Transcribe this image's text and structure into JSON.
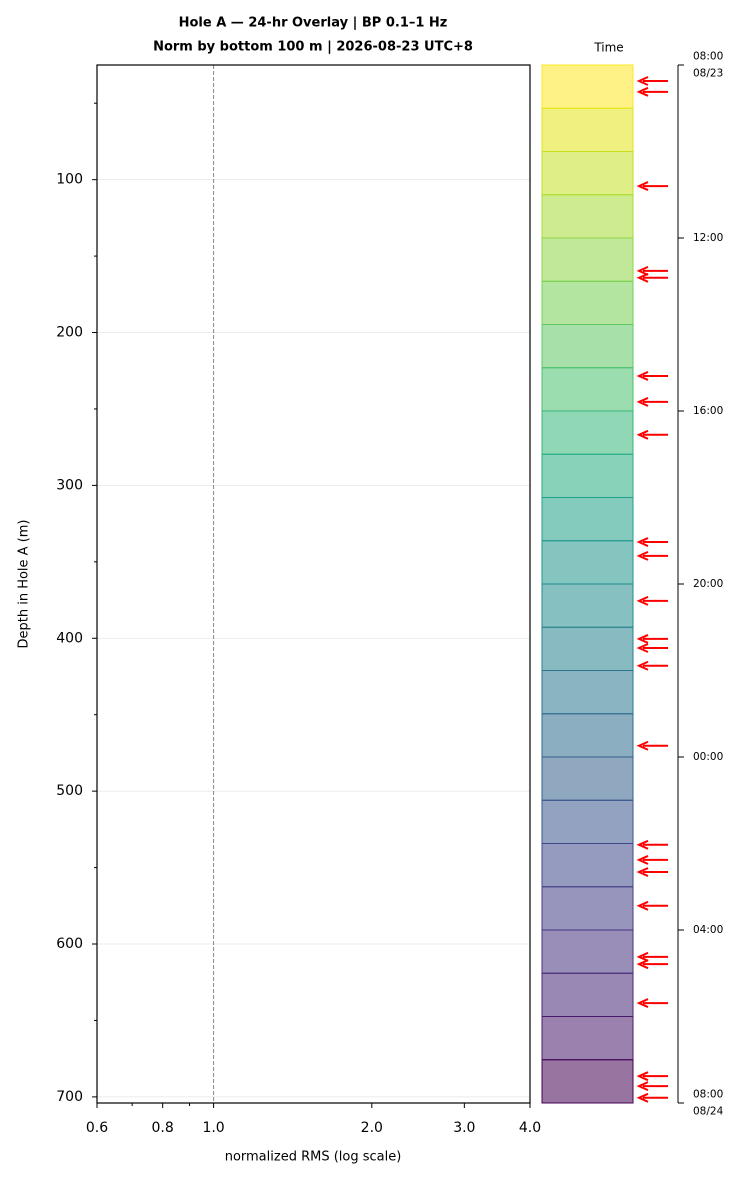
{
  "chart_data": [
    {
      "type": "line",
      "title": [
        "Hole A — 24-hr Overlay  |  BP 0.1–1 Hz",
        "Norm by bottom 100 m  |  2026-08-23 UTC+8"
      ],
      "xlabel": "normalized RMS  (log scale)",
      "ylabel": "Depth in Hole A (m)",
      "xscale": "log",
      "xlim": [
        0.6,
        4.0
      ],
      "xticks": [
        0.6,
        0.8,
        {
          "value": 1,
          "label": "1.0"
        },
        {
          "value": 2,
          "label": "2.0"
        },
        {
          "value": 3,
          "label": "3.0"
        },
        {
          "value": 4,
          "label": "4.0"
        }
      ],
      "xminor": [
        0.7,
        0.9
      ],
      "ylim": [
        704,
        25
      ],
      "yticks": [
        100,
        200,
        300,
        400,
        500,
        600,
        700
      ],
      "yminor": [
        50,
        150,
        250,
        350,
        450,
        550,
        650
      ],
      "reference_x": 1,
      "grid": true
    },
    {
      "type": "event-strip",
      "label": "Time",
      "ylim": [
        0,
        24
      ],
      "yticks": [
        {
          "value": 0,
          "label": "08:00\n08/23"
        },
        {
          "value": 4,
          "label": "12:00"
        },
        {
          "value": 8,
          "label": "16:00"
        },
        {
          "value": 12,
          "label": "20:00"
        },
        {
          "value": 16,
          "label": "00:00"
        },
        {
          "value": 20,
          "label": "04:00"
        },
        {
          "value": 24,
          "label": "08:00\n08/24"
        }
      ],
      "band_colors": [
        "#fde725",
        "#e2e418",
        "#c5e021",
        "#a8db34",
        "#8ed645",
        "#75d054",
        "#5ec962",
        "#48c16e",
        "#35b779",
        "#26ad81",
        "#1fa187",
        "#1f958b",
        "#228c8d",
        "#26828e",
        "#2a768e",
        "#2e6b8e",
        "#33608d",
        "#38558c",
        "#3e4989",
        "#433e85",
        "#46327e",
        "#472777",
        "#481a6c",
        "#440154"
      ],
      "events": {
        "color": "#ff0000",
        "values": [
          0.37,
          0.62,
          2.8,
          4.76,
          4.92,
          7.19,
          7.79,
          8.55,
          11.03,
          11.35,
          12.39,
          13.27,
          13.48,
          13.89,
          15.74,
          18.03,
          18.38,
          18.66,
          19.44,
          20.62,
          20.79,
          21.69,
          23.38,
          23.61,
          23.88
        ]
      }
    }
  ]
}
